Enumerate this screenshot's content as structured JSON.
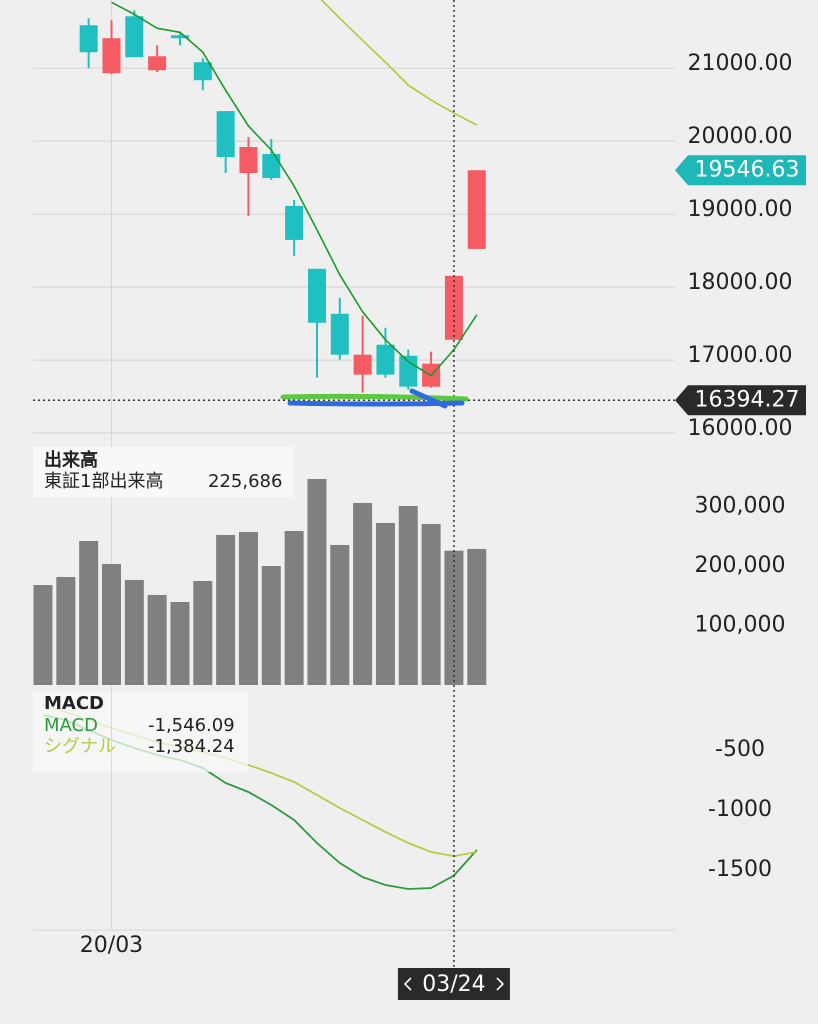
{
  "chart_data": [
    {
      "type": "candlestick",
      "categories": [
        null,
        null,
        null,
        null,
        null,
        null,
        null,
        null,
        null,
        null,
        null,
        null,
        null,
        null,
        null,
        null,
        null,
        null,
        null,
        null
      ],
      "open": [
        null,
        null,
        21534,
        20877,
        21657,
        20918,
        21397,
        21027,
        20357,
        19509,
        19769,
        19057,
        18196,
        17580,
        16746,
        17156,
        17005,
        16581,
        17224,
        18469
      ],
      "high": [
        null,
        null,
        21629,
        21602,
        21739,
        21260,
        21424,
        21082,
        20357,
        20001,
        19974,
        19140,
        18196,
        17799,
        17553,
        17388,
        17088,
        17060,
        18100,
        19546.63
      ],
      "low": [
        null,
        null,
        20945,
        20863,
        21096,
        20891,
        21260,
        20644,
        19509,
        18921,
        19413,
        18373,
        16704,
        16951,
        16499,
        16704,
        16540,
        16567,
        17224,
        18469
      ],
      "close": [
        null,
        null,
        21164,
        21356,
        21096,
        21109,
        21356,
        20781,
        19728,
        19865,
        19440,
        18592,
        17457,
        17019,
        17019,
        16746,
        16581,
        16896,
        18100,
        19546.63
      ],
      "up_color": "#f45b63",
      "down_color": "#20c0c2",
      "lines": [
        {
          "color": "#1a9a2a",
          "values": [
            null,
            null,
            null,
            21848,
            21684,
            21492,
            21438,
            21164,
            20644,
            20152,
            19824,
            19331,
            18729,
            18114,
            17607,
            17224,
            16923,
            16732,
            17088,
            17566
          ]
        },
        {
          "color": "#a8cc3a",
          "values": [
            null,
            null,
            null,
            null,
            null,
            null,
            null,
            null,
            null,
            null,
            null,
            null,
            21944,
            21629,
            21328,
            21027,
            20713,
            20508,
            20330,
            20166
          ]
        }
      ],
      "ylim": [
        15850,
        21880
      ],
      "yticks": [
        {
          "value": 16000,
          "label": "16000.00"
        },
        {
          "value": 17000,
          "label": "17000.00"
        },
        {
          "value": 18000,
          "label": "18000.00"
        },
        {
          "value": 19000,
          "label": "19000.00"
        },
        {
          "value": 20000,
          "label": "20000.00"
        },
        {
          "value": 21000,
          "label": "21000.00"
        }
      ],
      "grid": true,
      "crosshair_price": 16394.27
    },
    {
      "type": "bar",
      "title": "出来高",
      "categories": [
        null,
        null,
        null,
        null,
        null,
        null,
        null,
        null,
        null,
        null,
        null,
        null,
        null,
        null,
        null,
        null,
        null,
        null,
        null,
        null
      ],
      "series": [
        {
          "name": "東証1部出来高",
          "color": "#808080",
          "values": [
            168000,
            181500,
            242000,
            203400,
            176500,
            151300,
            139500,
            174800,
            252100,
            257100,
            200000,
            258800,
            346200,
            235300,
            305900,
            272300,
            300800,
            270600,
            225686,
            228600
          ],
          "value_labels": [
            null,
            null,
            null,
            null,
            null,
            null,
            null,
            null,
            null,
            null,
            null,
            null,
            null,
            null,
            null,
            null,
            null,
            null,
            "225,686",
            null
          ]
        }
      ],
      "ylim": [
        0,
        410000
      ],
      "yticks": [
        {
          "value": 100000,
          "label": "100,000"
        },
        {
          "value": 200000,
          "label": "200,000"
        },
        {
          "value": 300000,
          "label": "300,000"
        }
      ]
    },
    {
      "type": "line",
      "title": "MACD",
      "categories": [
        null,
        null,
        null,
        "20/03",
        null,
        null,
        null,
        null,
        null,
        null,
        null,
        null,
        null,
        null,
        null,
        null,
        null,
        null,
        "03/24",
        null
      ],
      "series": [
        {
          "name": "MACD",
          "color": "#2e9a3e",
          "values": [
            -208,
            -250,
            -333,
            -417,
            -483,
            -542,
            -583,
            -650,
            -775,
            -850,
            -958,
            -1083,
            -1275,
            -1442,
            -1558,
            -1625,
            -1658,
            -1650,
            -1546.09,
            -1333
          ],
          "value_labels": [
            null,
            null,
            null,
            null,
            null,
            null,
            null,
            null,
            null,
            null,
            null,
            null,
            null,
            null,
            null,
            null,
            null,
            null,
            "-1,546.09",
            null
          ]
        },
        {
          "name": "シグナル",
          "color": "#b4cc44",
          "values": [
            -125,
            -183,
            -250,
            -317,
            -375,
            -433,
            -475,
            -517,
            -567,
            -625,
            -692,
            -767,
            -875,
            -983,
            -1083,
            -1183,
            -1275,
            -1350,
            -1384.24,
            -1350
          ],
          "value_labels": [
            null,
            null,
            null,
            null,
            null,
            null,
            null,
            null,
            null,
            null,
            null,
            null,
            null,
            null,
            null,
            null,
            null,
            null,
            "-1,384.24",
            null
          ]
        }
      ],
      "ylim": [
        -2000,
        0
      ],
      "yticks": [
        -1500,
        -1000,
        -500
      ]
    }
  ]
}
